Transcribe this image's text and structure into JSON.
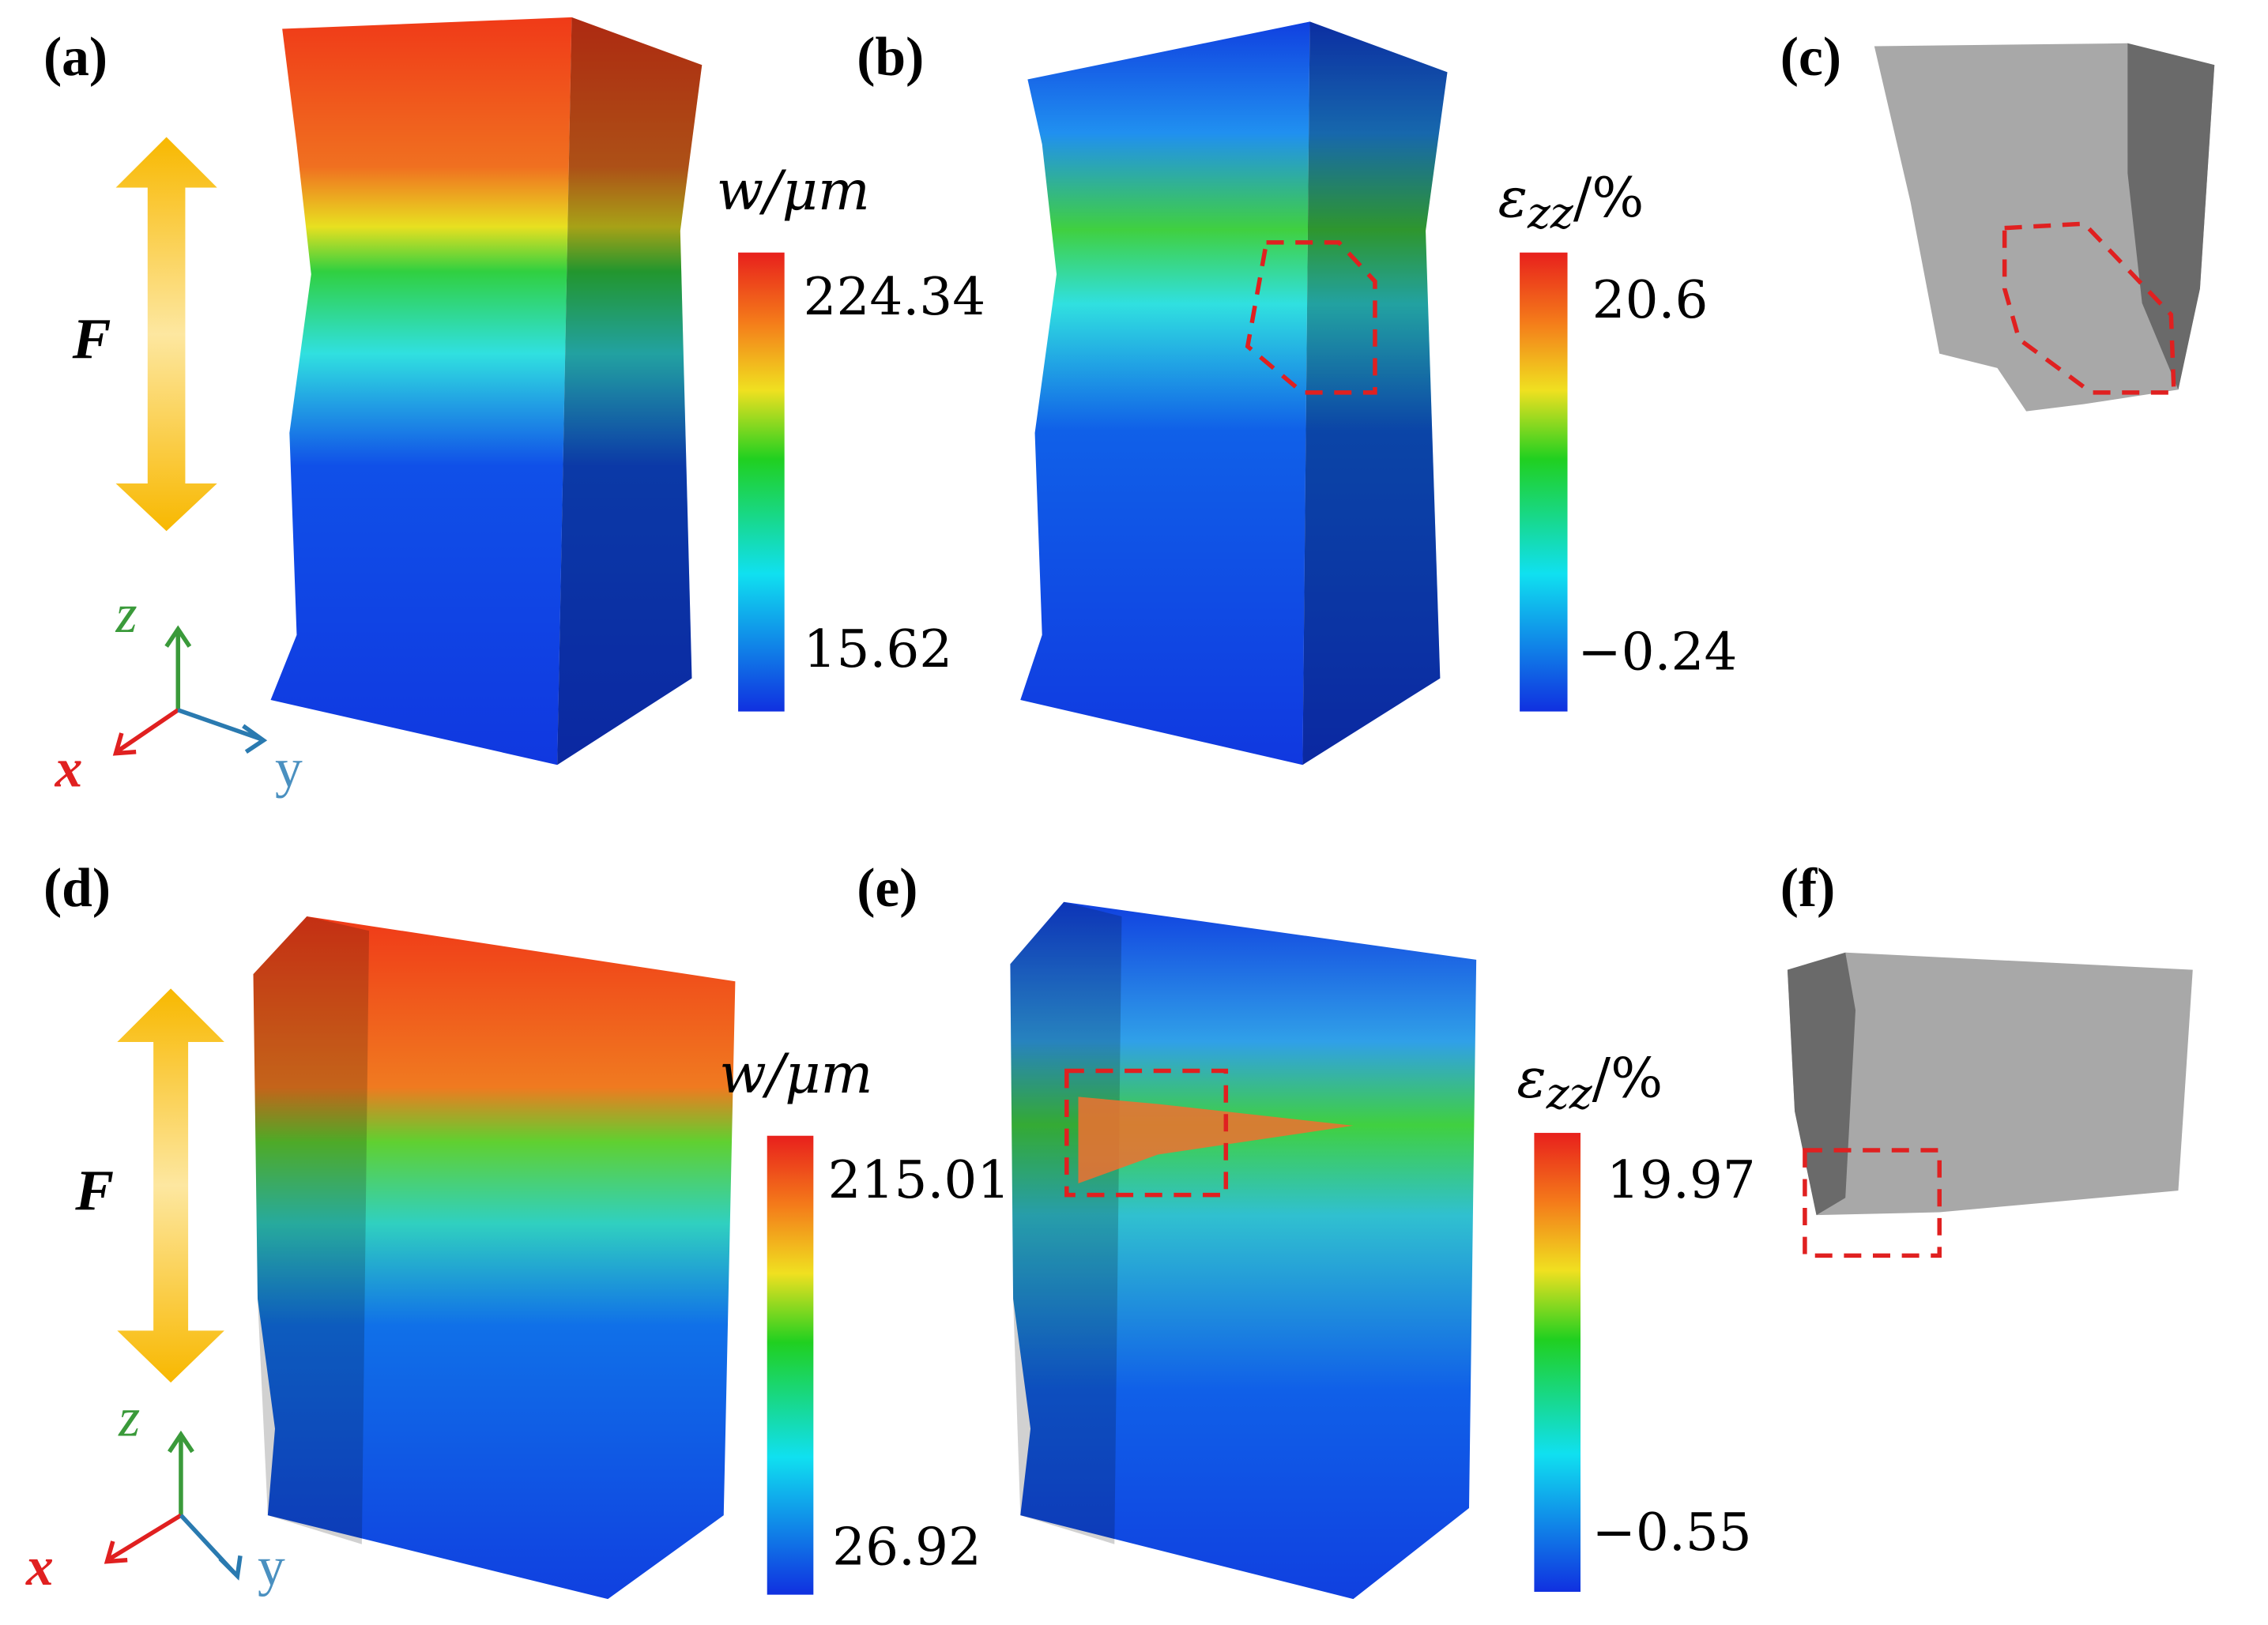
{
  "rows": [
    {
      "force": "F",
      "axes": {
        "x": "x",
        "y": "y",
        "z": "z"
      },
      "panels": [
        {
          "label": "(a)",
          "colorbar": {
            "title": "w/μm",
            "max": "224.34",
            "min": "15.62"
          }
        },
        {
          "label": "(b)",
          "colorbar": {
            "title": {
              "symbol": "ε",
              "subscript": "zz",
              "unit": "/%"
            },
            "max": "20.6",
            "min": "−0.24"
          }
        },
        {
          "label": "(c)"
        }
      ]
    },
    {
      "force": "F",
      "axes": {
        "x": "x",
        "y": "y",
        "z": "z"
      },
      "panels": [
        {
          "label": "(d)",
          "colorbar": {
            "title": "w/μm",
            "max": "215.01",
            "min": "26.92"
          }
        },
        {
          "label": "(e)",
          "colorbar": {
            "title": {
              "symbol": "ε",
              "subscript": "zz",
              "unit": "/%"
            },
            "max": "19.97",
            "min": "−0.55"
          }
        },
        {
          "label": "(f)"
        }
      ]
    }
  ]
}
